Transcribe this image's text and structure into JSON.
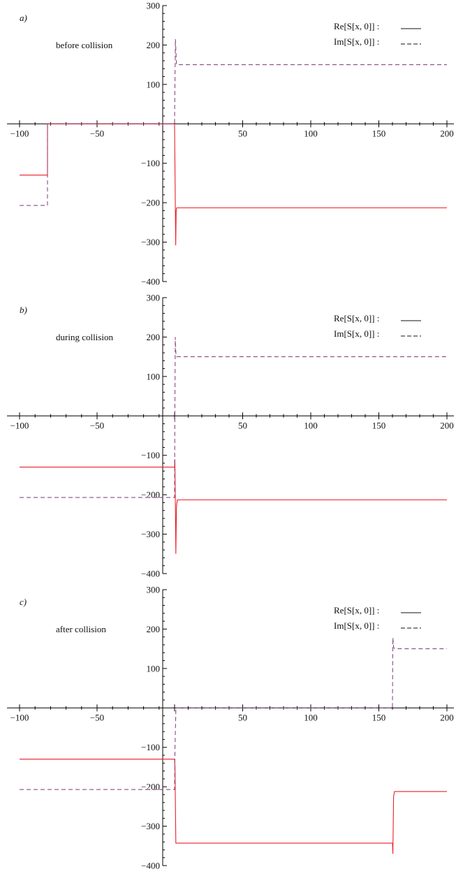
{
  "chart_data": [
    {
      "type": "line",
      "panel_label": "a)",
      "annotation": "before collision",
      "legend": [
        {
          "label": "Re[S[x, 0]] :",
          "line_style": "solid"
        },
        {
          "label": "Im[S[x, 0]] :",
          "line_style": "dashed"
        }
      ],
      "xlim": [
        -100,
        200
      ],
      "ylim": [
        -400,
        300
      ],
      "x_ticks": [
        -100,
        -50,
        50,
        100,
        150,
        200
      ],
      "y_ticks": [
        300,
        200,
        100,
        -100,
        -200,
        -300,
        -400
      ],
      "series": [
        {
          "style": "solid",
          "color": "#e8222e",
          "x": [
            -100,
            -82,
            -82,
            0,
            0,
            0.8,
            1.2,
            1.6,
            200
          ],
          "y": [
            -130,
            -130,
            0,
            0,
            -5,
            -308,
            -220,
            -213,
            -213
          ]
        },
        {
          "style": "dashed",
          "color": "#8a4a80",
          "x": [
            -100,
            -82,
            -82,
            0,
            0,
            0.6,
            1.4,
            200
          ],
          "y": [
            -207,
            -207,
            0,
            0,
            10,
            215,
            150,
            150
          ]
        }
      ]
    },
    {
      "type": "line",
      "panel_label": "b)",
      "annotation": "during collision",
      "legend": [
        {
          "label": "Re[S[x, 0]] :",
          "line_style": "solid"
        },
        {
          "label": "Im[S[x, 0]] :",
          "line_style": "dashed"
        }
      ],
      "xlim": [
        -100,
        200
      ],
      "ylim": [
        -400,
        300
      ],
      "x_ticks": [
        -100,
        -50,
        50,
        100,
        150,
        200
      ],
      "y_ticks": [
        300,
        200,
        100,
        -100,
        -200,
        -300,
        -400
      ],
      "series": [
        {
          "style": "solid",
          "color": "#e8222e",
          "x": [
            -100,
            0,
            0.2,
            0.5,
            0.9,
            1.4,
            2.0,
            200
          ],
          "y": [
            -130,
            -130,
            -110,
            -200,
            -350,
            -230,
            -213,
            -213
          ]
        },
        {
          "style": "dashed",
          "color": "#8a4a80",
          "x": [
            -100,
            0,
            0.2,
            0.5,
            0.9,
            1.5,
            200
          ],
          "y": [
            -207,
            -207,
            0,
            200,
            160,
            150,
            150
          ]
        }
      ]
    },
    {
      "type": "line",
      "panel_label": "c)",
      "annotation": "after collision",
      "legend": [
        {
          "label": "Re[S[x, 0]] :",
          "line_style": "solid"
        },
        {
          "label": "Im[S[x, 0]] :",
          "line_style": "dashed"
        }
      ],
      "xlim": [
        -100,
        200
      ],
      "ylim": [
        -400,
        300
      ],
      "x_ticks": [
        -100,
        -50,
        50,
        100,
        150,
        200
      ],
      "y_ticks": [
        300,
        200,
        100,
        -100,
        -200,
        -300,
        -400
      ],
      "series": [
        {
          "style": "solid",
          "color": "#e8222e",
          "x": [
            -100,
            0,
            0.3,
            0.9,
            160,
            160.3,
            160.8,
            161.5,
            200
          ],
          "y": [
            -130,
            -130,
            -150,
            -343,
            -343,
            -370,
            -225,
            -212,
            -212
          ]
        },
        {
          "style": "dashed",
          "color": "#8a4a80",
          "x": [
            -100,
            0,
            0.3,
            1.0,
            160,
            160.3,
            160.8,
            161.5,
            200
          ],
          "y": [
            -207,
            -207,
            -100,
            0,
            0,
            178,
            155,
            150,
            150
          ]
        }
      ]
    }
  ]
}
